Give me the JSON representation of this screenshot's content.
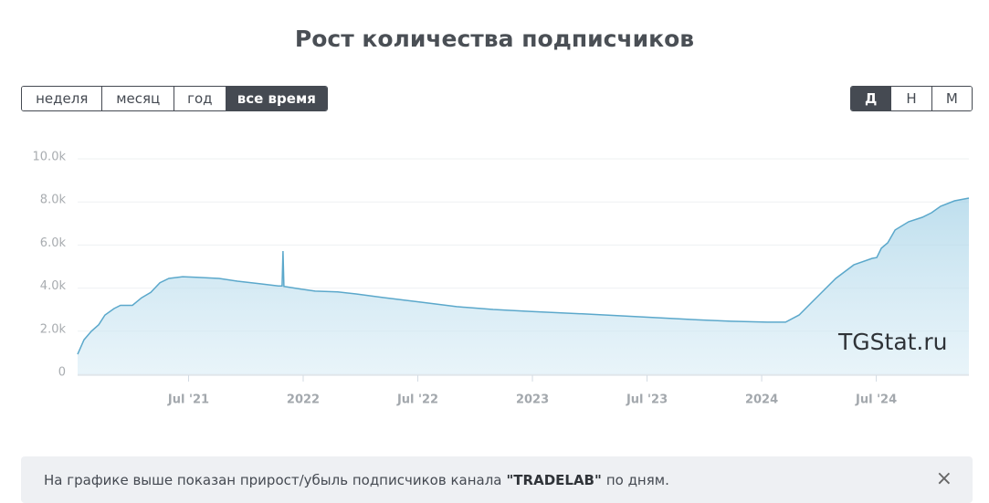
{
  "header": {
    "title": "Рост количества подписчиков"
  },
  "range_buttons": [
    {
      "label": "неделя",
      "active": false
    },
    {
      "label": "месяц",
      "active": false
    },
    {
      "label": "год",
      "active": false
    },
    {
      "label": "все время",
      "active": true
    }
  ],
  "step_buttons": [
    {
      "label": "Д",
      "active": true
    },
    {
      "label": "Н",
      "active": false
    },
    {
      "label": "М",
      "active": false
    }
  ],
  "chart_data": {
    "type": "area",
    "watermark": "TGStat.ru",
    "color": "#5ba8cb",
    "x": [
      2021.016,
      2021.044,
      2021.076,
      2021.108,
      2021.135,
      2021.175,
      2021.203,
      2021.255,
      2021.295,
      2021.335,
      2021.375,
      2021.414,
      2021.474,
      2021.534,
      2021.633,
      2021.713,
      2021.813,
      2021.892,
      2021.908,
      2021.912,
      2021.916,
      2021.992,
      2022.052,
      2022.151,
      2022.231,
      2022.351,
      2022.51,
      2022.669,
      2022.829,
      2022.988,
      2023.227,
      2023.466,
      2023.705,
      2023.865,
      2024.024,
      2024.104,
      2024.163,
      2024.243,
      2024.323,
      2024.402,
      2024.482,
      2024.502,
      2024.522,
      2024.55,
      2024.582,
      2024.641,
      2024.701,
      2024.741,
      2024.781,
      2024.841,
      2024.904
    ],
    "values": [
      930,
      1600,
      2000,
      2300,
      2750,
      3050,
      3200,
      3200,
      3550,
      3800,
      4250,
      4450,
      4530,
      4500,
      4450,
      4320,
      4200,
      4100,
      4100,
      5720,
      4080,
      3950,
      3860,
      3820,
      3730,
      3560,
      3350,
      3140,
      3010,
      2920,
      2800,
      2670,
      2540,
      2460,
      2420,
      2420,
      2750,
      3600,
      4450,
      5080,
      5380,
      5420,
      5850,
      6100,
      6700,
      7080,
      7290,
      7500,
      7800,
      8050,
      8180
    ],
    "xlim": [
      2021.016,
      2024.904
    ],
    "xticks": [
      {
        "value": 2021.5,
        "label": "Jul '21"
      },
      2022,
      {
        "value": 2022.5,
        "label": "Jul '22"
      },
      2023,
      {
        "value": 2023.5,
        "label": "Jul '23"
      },
      2024,
      {
        "value": 2024.5,
        "label": "Jul '24"
      }
    ],
    "ylim": [
      0,
      10000
    ],
    "yticks": [
      0,
      {
        "value": 2000,
        "label": "2.0k"
      },
      {
        "value": 4000,
        "label": "4.0k"
      },
      {
        "value": 6000,
        "label": "6.0k"
      },
      {
        "value": 8000,
        "label": "8.0k"
      },
      {
        "value": 10000,
        "label": "10.0k"
      }
    ],
    "grid": true
  },
  "info": {
    "text_before": "На графике выше показан прирост/убыль подписчиков канала",
    "channel": "\"TRADELAB\"",
    "text_after": "по дням.",
    "close": "×"
  }
}
